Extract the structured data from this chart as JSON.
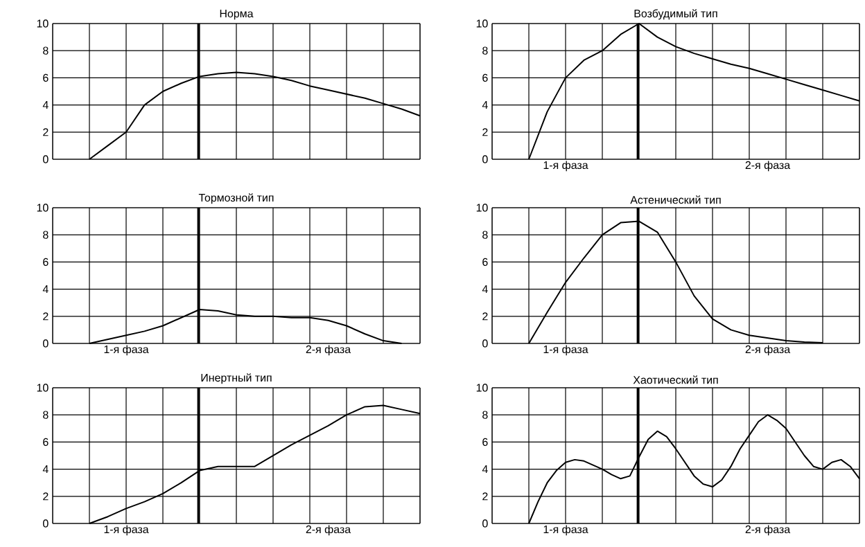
{
  "chart_data": [
    {
      "type": "line",
      "title": "Норма",
      "categories": [
        null,
        null,
        null,
        null,
        null,
        null,
        null,
        null,
        null,
        null,
        null,
        null,
        null,
        null,
        null,
        null,
        null,
        null,
        null,
        null,
        null
      ],
      "series": [
        {
          "color": "#000000",
          "values": [
            null,
            null,
            0,
            1,
            2,
            4,
            5,
            5.6,
            6.1,
            6.3,
            6.4,
            6.3,
            6.1,
            5.8,
            5.4,
            5.1,
            4.8,
            4.5,
            4.1,
            3.7,
            3.2
          ]
        }
      ],
      "ylim": [
        0,
        10
      ],
      "yticks": [
        0,
        2,
        4,
        6,
        8,
        10
      ],
      "grid": true
    },
    {
      "type": "line",
      "title": "Возбудимый тип",
      "categories": [
        null,
        null,
        null,
        null,
        null,
        null,
        null,
        null,
        null,
        null,
        null,
        null,
        null,
        null,
        null,
        null,
        null,
        null,
        null,
        null,
        null
      ],
      "series": [
        {
          "color": "#000000",
          "values": [
            null,
            null,
            0,
            3.5,
            6,
            7.3,
            8,
            9.2,
            10,
            9,
            8.3,
            7.8,
            7.4,
            7,
            6.7,
            6.3,
            5.9,
            5.5,
            5.1,
            4.7,
            4.3
          ]
        }
      ],
      "ylim": [
        0,
        10
      ],
      "yticks": [
        0,
        2,
        4,
        6,
        8,
        10
      ],
      "grid": true,
      "annotations": [
        "1-я фаза",
        "2-я фаза"
      ]
    },
    {
      "type": "line",
      "title": "Тормозной тип",
      "categories": [
        null,
        null,
        null,
        null,
        null,
        null,
        null,
        null,
        null,
        null,
        null,
        null,
        null,
        null,
        null,
        null,
        null,
        null,
        null,
        null,
        null
      ],
      "series": [
        {
          "color": "#000000",
          "values": [
            null,
            null,
            0,
            0.3,
            0.6,
            0.9,
            1.3,
            1.9,
            2.5,
            2.4,
            2.1,
            2,
            2,
            1.9,
            1.9,
            1.7,
            1.3,
            0.7,
            0.2,
            0,
            null
          ]
        }
      ],
      "ylim": [
        0,
        10
      ],
      "yticks": [
        0,
        2,
        4,
        6,
        8,
        10
      ],
      "grid": true,
      "annotations": [
        "1-я фаза",
        "2-я фаза"
      ]
    },
    {
      "type": "line",
      "title": "Астенический тип",
      "categories": [
        null,
        null,
        null,
        null,
        null,
        null,
        null,
        null,
        null,
        null,
        null,
        null,
        null,
        null,
        null,
        null,
        null,
        null,
        null,
        null,
        null
      ],
      "series": [
        {
          "color": "#000000",
          "values": [
            null,
            null,
            0,
            2.3,
            4.5,
            6.3,
            8,
            8.9,
            9,
            8.2,
            6,
            3.5,
            1.8,
            1,
            0.6,
            0.4,
            0.2,
            0.1,
            0.05,
            null,
            null
          ]
        }
      ],
      "ylim": [
        0,
        10
      ],
      "yticks": [
        0,
        2,
        4,
        6,
        8,
        10
      ],
      "grid": true,
      "annotations": [
        "1-я фаза",
        "2-я фаза"
      ]
    },
    {
      "type": "line",
      "title": "Инертный тип",
      "categories": [
        null,
        null,
        null,
        null,
        null,
        null,
        null,
        null,
        null,
        null,
        null,
        null,
        null,
        null,
        null,
        null,
        null,
        null,
        null,
        null,
        null
      ],
      "series": [
        {
          "color": "#000000",
          "values": [
            null,
            null,
            0,
            0.5,
            1.1,
            1.6,
            2.2,
            3,
            3.9,
            4.2,
            4.2,
            4.2,
            5,
            5.8,
            6.5,
            7.2,
            8,
            8.6,
            8.7,
            8.4,
            8.1
          ]
        }
      ],
      "ylim": [
        0,
        10
      ],
      "yticks": [
        0,
        2,
        4,
        6,
        8,
        10
      ],
      "grid": true,
      "annotations": [
        "1-я фаза",
        "2-я фаза"
      ]
    },
    {
      "type": "line",
      "title": "Хаотический тип",
      "categories": [
        null,
        null,
        null,
        null,
        null,
        null,
        null,
        null,
        null,
        null,
        null,
        null,
        null,
        null,
        null,
        null,
        null,
        null,
        null,
        null,
        null,
        null,
        null,
        null,
        null,
        null,
        null,
        null,
        null,
        null,
        null,
        null,
        null,
        null,
        null,
        null,
        null,
        null,
        null,
        null,
        null
      ],
      "series": [
        {
          "color": "#000000",
          "values": [
            null,
            null,
            null,
            null,
            0,
            1.6,
            3,
            3.9,
            4.5,
            4.7,
            4.6,
            4.3,
            4,
            3.6,
            3.3,
            3.5,
            4.9,
            6.2,
            6.8,
            6.4,
            5.5,
            4.5,
            3.5,
            2.9,
            2.7,
            3.2,
            4.2,
            5.5,
            6.5,
            7.5,
            8,
            7.6,
            7,
            6,
            5,
            4.2,
            4,
            4.5,
            4.7,
            4.2,
            3.3
          ]
        }
      ],
      "ylim": [
        0,
        10
      ],
      "yticks": [
        0,
        2,
        4,
        6,
        8,
        10
      ],
      "grid": true,
      "annotations": [
        "1-я фаза",
        "2-я фаза"
      ]
    }
  ]
}
